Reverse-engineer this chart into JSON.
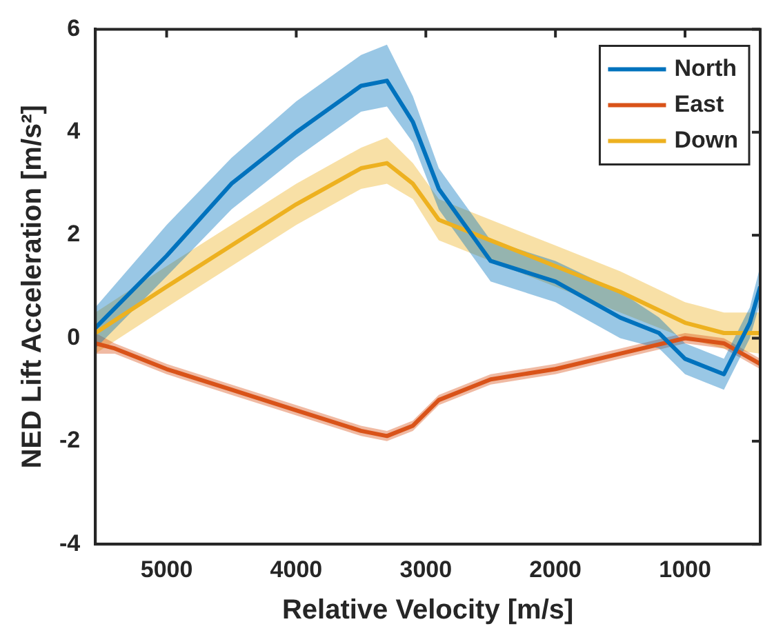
{
  "chart_data": {
    "type": "line",
    "xlabel": "Relative Velocity [m/s]",
    "ylabel": "NED Lift Acceleration [m/s²]",
    "xlim": [
      5550,
      420
    ],
    "ylim": [
      -4,
      6
    ],
    "xticks": [
      5000,
      4000,
      3000,
      2000,
      1000
    ],
    "yticks": [
      -4,
      -2,
      0,
      2,
      4,
      6
    ],
    "grid": false,
    "legend": "top right",
    "line_style": "solid",
    "marker": "none",
    "series": [
      {
        "name": "North",
        "color": "#0072bd",
        "x": [
          5550,
          5000,
          4500,
          4000,
          3500,
          3300,
          3100,
          2900,
          2700,
          2500,
          2000,
          1500,
          1200,
          1000,
          700,
          500,
          420
        ],
        "values": [
          0.2,
          1.6,
          3.0,
          4.0,
          4.9,
          5.0,
          4.2,
          2.9,
          2.2,
          1.5,
          1.1,
          0.4,
          0.1,
          -0.4,
          -0.7,
          0.3,
          1.0
        ],
        "lower": [
          -0.2,
          1.2,
          2.5,
          3.5,
          4.4,
          4.5,
          3.8,
          2.5,
          1.8,
          1.1,
          0.7,
          0.0,
          -0.2,
          -0.7,
          -1.0,
          0.0,
          0.7
        ],
        "upper": [
          0.6,
          2.2,
          3.5,
          4.6,
          5.5,
          5.7,
          4.7,
          3.3,
          2.6,
          1.9,
          1.5,
          0.9,
          0.4,
          -0.1,
          -0.4,
          0.6,
          1.4
        ]
      },
      {
        "name": "East",
        "color": "#d95319",
        "x": [
          5550,
          5400,
          5000,
          4500,
          4000,
          3500,
          3300,
          3100,
          2900,
          2500,
          2000,
          1500,
          1000,
          700,
          420
        ],
        "values": [
          -0.1,
          -0.2,
          -0.6,
          -1.0,
          -1.4,
          -1.8,
          -1.9,
          -1.7,
          -1.2,
          -0.8,
          -0.6,
          -0.3,
          0.0,
          -0.1,
          -0.5
        ],
        "lower": [
          -0.3,
          -0.3,
          -0.7,
          -1.1,
          -1.5,
          -1.9,
          -2.0,
          -1.8,
          -1.3,
          -0.9,
          -0.7,
          -0.4,
          -0.1,
          -0.2,
          -0.6
        ],
        "upper": [
          0.1,
          -0.1,
          -0.5,
          -0.9,
          -1.3,
          -1.7,
          -1.8,
          -1.6,
          -1.1,
          -0.7,
          -0.5,
          -0.2,
          0.1,
          0.0,
          -0.4
        ]
      },
      {
        "name": "Down",
        "color": "#edb120",
        "x": [
          5550,
          5000,
          4500,
          4000,
          3500,
          3300,
          3100,
          2900,
          2500,
          2000,
          1500,
          1000,
          700,
          420
        ],
        "values": [
          0.1,
          1.0,
          1.8,
          2.6,
          3.3,
          3.4,
          3.0,
          2.3,
          1.9,
          1.4,
          0.9,
          0.3,
          0.1,
          0.1
        ],
        "lower": [
          -0.3,
          0.6,
          1.4,
          2.2,
          2.9,
          3.0,
          2.7,
          1.9,
          1.5,
          1.0,
          0.5,
          0.0,
          -0.2,
          -0.3
        ],
        "upper": [
          0.5,
          1.4,
          2.2,
          3.0,
          3.7,
          3.9,
          3.4,
          2.7,
          2.3,
          1.8,
          1.3,
          0.7,
          0.5,
          0.5
        ]
      }
    ]
  }
}
